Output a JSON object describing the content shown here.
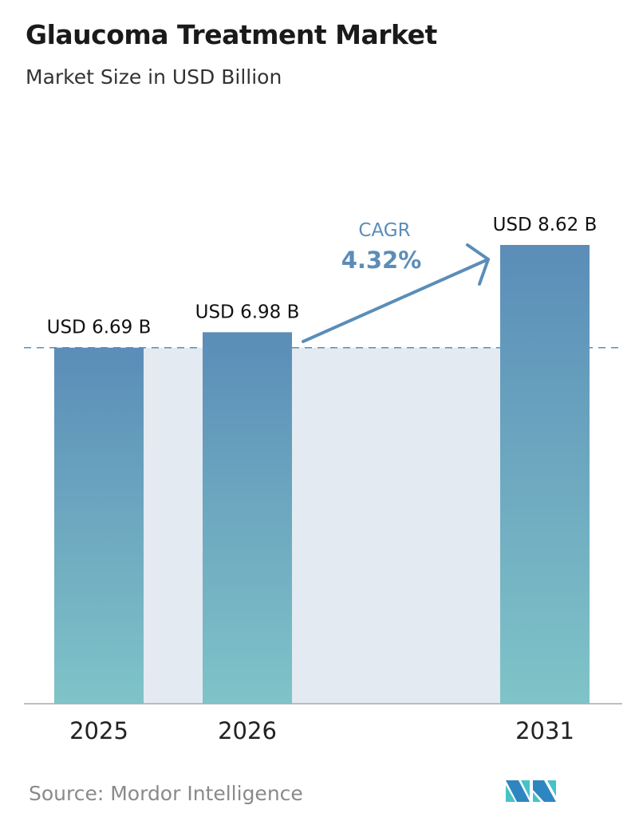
{
  "chart_data": {
    "type": "bar",
    "title": "Glaucoma Treatment Market",
    "subtitle": "Market Size in USD Billion",
    "categories": [
      "2025",
      "2026",
      "2031"
    ],
    "values": [
      6.69,
      6.98,
      8.62
    ],
    "data_labels": [
      "USD 6.69 B",
      "USD 6.98 B",
      "USD 8.62 B"
    ],
    "ylim": [
      0,
      8.62
    ],
    "grid": false,
    "annotation": {
      "label": "CAGR",
      "value": "4.32%"
    },
    "colors": {
      "bar_top": "#5b8db8",
      "bar_bottom": "#7fc4c8",
      "band": "#e3eaf1",
      "accent": "#5b8db8",
      "reference_line": "#5b8db8"
    }
  },
  "source": "Source:  Mordor Intelligence",
  "logo": {
    "text": "Mordor Intelligence",
    "colors": [
      "#2e86c1",
      "#45c3c8"
    ]
  }
}
